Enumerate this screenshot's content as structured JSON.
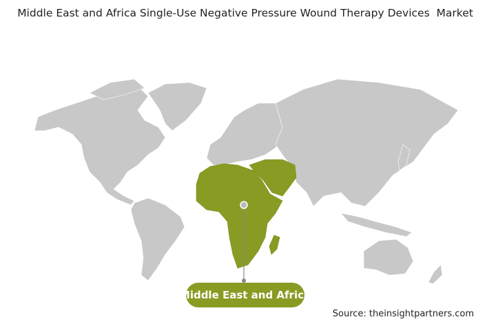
{
  "header": {
    "title": "Middle East and Africa Single-Use Negative Pressure Wound Therapy Devices  Market"
  },
  "map": {
    "highlighted_region": "Middle East and Africa"
  },
  "footer": {
    "source": "Source: theinsightpartners.com"
  }
}
